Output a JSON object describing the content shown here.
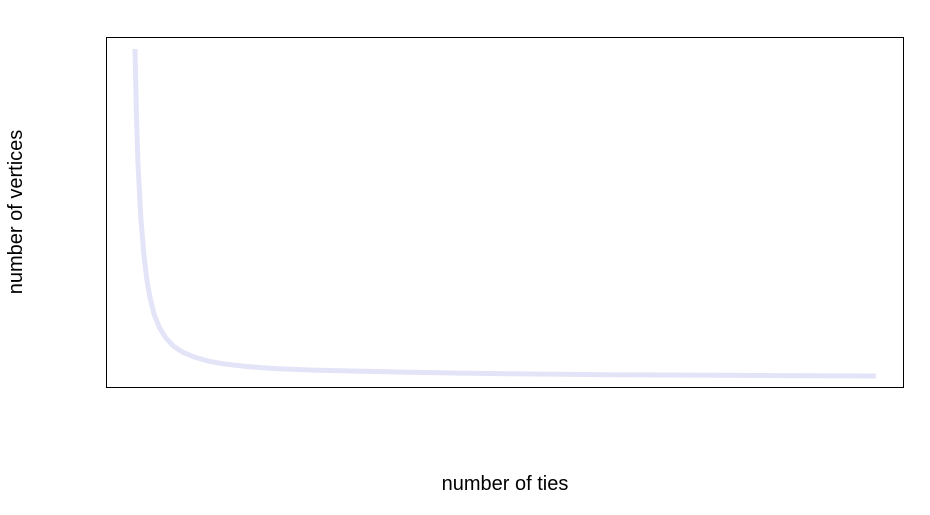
{
  "chart_data": {
    "type": "line",
    "title": "",
    "xlabel": "number of ties",
    "ylabel": "number of vertices",
    "xlim": [
      0,
      1
    ],
    "ylim": [
      0,
      1
    ],
    "grid": false,
    "axes_ticks": false,
    "series": [
      {
        "color": "#e4e4f8",
        "x": [
          0.0,
          0.002,
          0.004,
          0.008,
          0.012,
          0.016,
          0.02,
          0.026,
          0.033,
          0.041,
          0.052,
          0.065,
          0.08,
          0.1,
          0.12,
          0.15,
          0.19,
          0.24,
          0.3,
          0.37,
          0.45,
          0.54,
          0.64,
          0.75,
          0.87,
          1.0
        ],
        "y": [
          1.0,
          0.79,
          0.65,
          0.48,
          0.37,
          0.295,
          0.242,
          0.187,
          0.148,
          0.118,
          0.091,
          0.072,
          0.058,
          0.045,
          0.037,
          0.029,
          0.0225,
          0.018,
          0.015,
          0.0115,
          0.0085,
          0.006,
          0.004,
          0.0025,
          0.0012,
          0.0
        ]
      }
    ]
  }
}
